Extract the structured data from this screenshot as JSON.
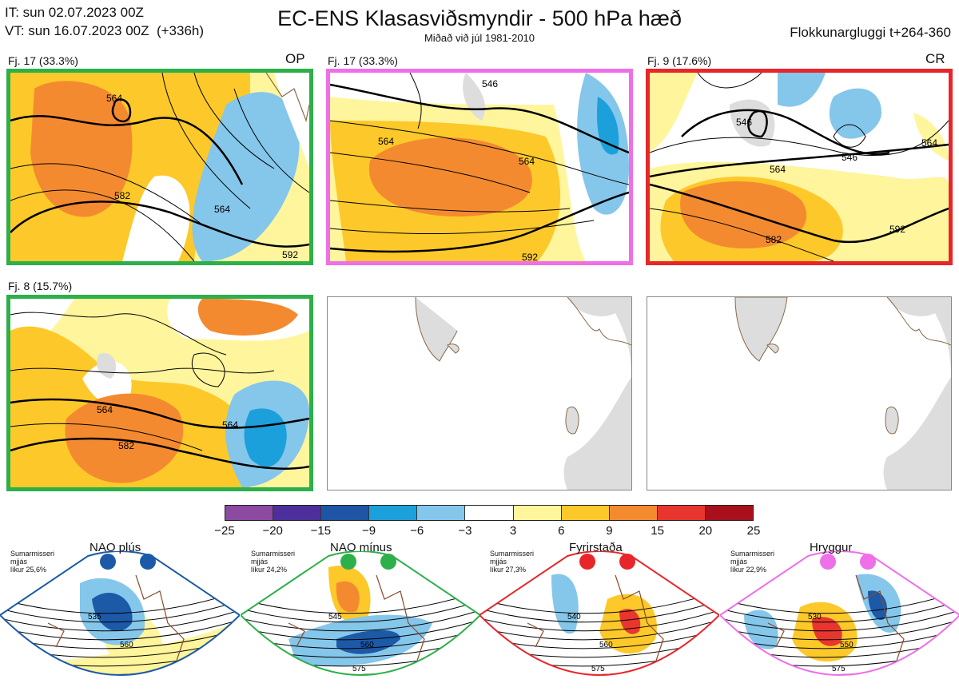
{
  "header": {
    "init_time": "IT: sun 02.07.2023 00Z",
    "valid_time": "VT: sun 16.07.2023 00Z  (+336h)",
    "title": "EC-ENS Klasasviðsmyndir - 500 hPa hæð",
    "subtitle": "Miðað við júl 1981-2010",
    "window": "Flokkunargluggi t+264-360"
  },
  "panels": [
    {
      "label": "Fj. 17 (33.3%)",
      "tag": "OP",
      "border_color": "#2db04a",
      "contours": [
        "564",
        "564",
        "582",
        "592"
      ]
    },
    {
      "label": "Fj. 17 (33.3%)",
      "tag": "",
      "border_color": "#ee6fe8",
      "contours": [
        "546",
        "564",
        "564",
        "592"
      ]
    },
    {
      "label": "Fj. 9 (17.6%)",
      "tag": "CR",
      "border_color": "#e8262a",
      "contours": [
        "546",
        "546",
        "564",
        "564",
        "582",
        "592"
      ]
    },
    {
      "label": "Fj. 8 (15.7%)",
      "tag": "",
      "border_color": "#2db04a",
      "contours": [
        "564",
        "564",
        "582"
      ]
    },
    {
      "label": "",
      "tag": "",
      "border_color": "#888888",
      "contours": []
    },
    {
      "label": "",
      "tag": "",
      "border_color": "#888888",
      "contours": []
    }
  ],
  "colorbar": {
    "colors": [
      "#8c4aa0",
      "#4c2f9a",
      "#1e55a5",
      "#1ca0dc",
      "#85c6eb",
      "#ffffff",
      "#fff59d",
      "#fdc92a",
      "#f48a30",
      "#e8362f",
      "#a8111c"
    ],
    "ticks": [
      "−25",
      "−20",
      "−15",
      "−9",
      "−6",
      "−3",
      "3",
      "6",
      "9",
      "15",
      "20",
      "25"
    ]
  },
  "regimes": [
    {
      "name": "NAO plús",
      "line1": "Sumarmisseri",
      "line2": "mjjás",
      "line3": "líkur 25,6%",
      "color": "#1c5aa8",
      "contours": [
        "535",
        "560"
      ]
    },
    {
      "name": "NAO mínus",
      "line1": "Sumarmisseri",
      "line2": "mjjás",
      "line3": "líkur 24,2%",
      "color": "#2db04a",
      "contours": [
        "545",
        "560",
        "575"
      ]
    },
    {
      "name": "Fyrirstaða",
      "line1": "Sumarmisseri",
      "line2": "mjjás",
      "line3": "líkur 27,3%",
      "color": "#e8262a",
      "contours": [
        "540",
        "560",
        "575"
      ]
    },
    {
      "name": "Hryggur",
      "line1": "Sumarmisseri",
      "line2": "mjjás",
      "line3": "líkur 22,9%",
      "color": "#ee6fe8",
      "contours": [
        "530",
        "550",
        "575"
      ]
    }
  ]
}
